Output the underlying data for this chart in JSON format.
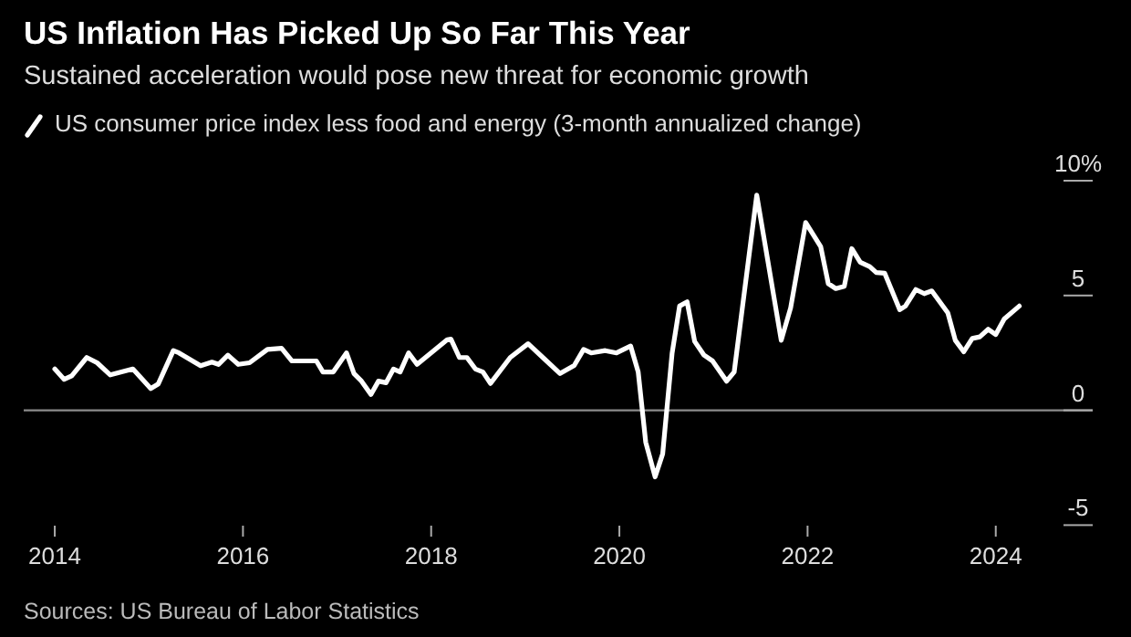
{
  "chart_data": {
    "type": "line",
    "title": "US Inflation Has Picked Up So Far This Year",
    "subtitle": "Sustained acceleration would pose new threat for economic growth",
    "annotations": [
      "Sources: US Bureau of Labor Statistics"
    ],
    "legend": "top left",
    "series": [
      {
        "name": "US consumer price index less food and energy (3-month annualized change)",
        "color": "#ffffff",
        "x": [
          2014.0,
          2014.1,
          2014.18,
          2014.34,
          2014.45,
          2014.59,
          2014.83,
          2015.02,
          2015.1,
          2015.26,
          2015.32,
          2015.55,
          2015.67,
          2015.74,
          2015.84,
          2015.95,
          2016.07,
          2016.26,
          2016.41,
          2016.52,
          2016.78,
          2016.85,
          2016.96,
          2017.1,
          2017.18,
          2017.26,
          2017.36,
          2017.44,
          2017.52,
          2017.6,
          2017.67,
          2017.76,
          2017.85,
          2018.17,
          2018.21,
          2018.3,
          2018.38,
          2018.47,
          2018.55,
          2018.63,
          2018.84,
          2019.03,
          2019.2,
          2019.37,
          2019.52,
          2019.62,
          2019.7,
          2019.85,
          2019.97,
          2020.12,
          2020.2,
          2020.28,
          2020.38,
          2020.46,
          2020.56,
          2020.64,
          2020.72,
          2020.8,
          2020.9,
          2020.99,
          2021.14,
          2021.22,
          2021.46,
          2021.72,
          2021.82,
          2021.98,
          2022.14,
          2022.22,
          2022.3,
          2022.39,
          2022.47,
          2022.56,
          2022.66,
          2022.73,
          2022.82,
          2022.98,
          2023.04,
          2023.15,
          2023.24,
          2023.32,
          2023.49,
          2023.57,
          2023.66,
          2023.75,
          2023.83,
          2023.92,
          2024.0,
          2024.09,
          2024.25
        ],
        "values": [
          1.8,
          1.35,
          1.5,
          2.3,
          2.07,
          1.54,
          1.8,
          0.95,
          1.15,
          2.6,
          2.5,
          1.94,
          2.1,
          2.0,
          2.4,
          2.0,
          2.07,
          2.65,
          2.7,
          2.15,
          2.15,
          1.67,
          1.67,
          2.5,
          1.6,
          1.27,
          0.69,
          1.27,
          1.2,
          1.8,
          1.67,
          2.5,
          2.0,
          3.07,
          3.1,
          2.3,
          2.3,
          1.8,
          1.67,
          1.17,
          2.3,
          2.9,
          2.25,
          1.6,
          1.95,
          2.65,
          2.5,
          2.6,
          2.5,
          2.8,
          1.67,
          -1.39,
          -2.9,
          -1.9,
          2.47,
          4.54,
          4.72,
          3.0,
          2.4,
          2.15,
          1.27,
          1.67,
          9.37,
          3.05,
          4.46,
          8.18,
          7.12,
          5.52,
          5.3,
          5.4,
          7.04,
          6.45,
          6.26,
          6.0,
          5.97,
          4.38,
          4.54,
          5.26,
          5.08,
          5.2,
          4.25,
          3.05,
          2.55,
          3.13,
          3.2,
          3.53,
          3.3,
          3.98,
          4.54
        ]
      }
    ],
    "xlim": [
      2013.67,
      2025.03
    ],
    "xticks": [
      2014,
      2016,
      2018,
      2020,
      2022,
      2024
    ],
    "ylim": [
      -5,
      10
    ],
    "yticks": [
      {
        "value": 10,
        "label": "10%"
      },
      5,
      0,
      -5
    ],
    "ref_lines": [
      {
        "axis": "y",
        "value": 0,
        "color": "#8c8c8c"
      }
    ],
    "grid": false
  }
}
